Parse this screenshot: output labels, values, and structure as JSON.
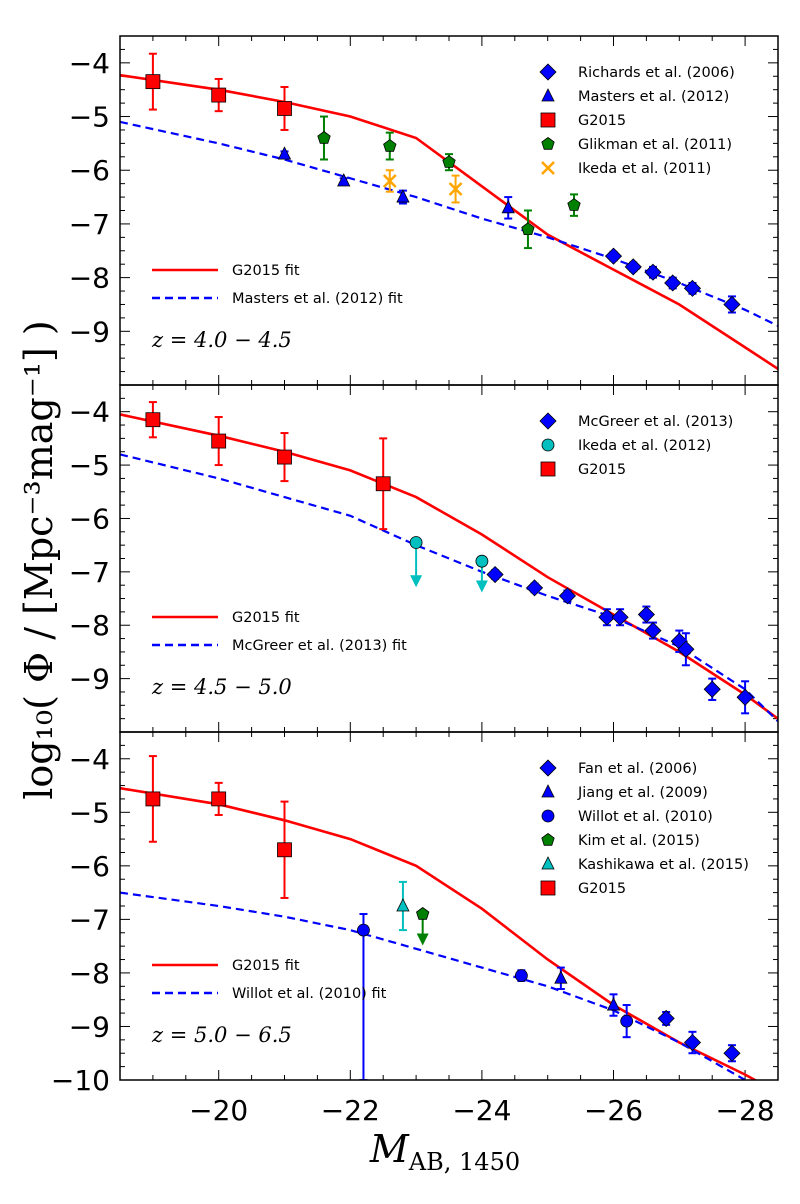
{
  "figure": {
    "ylabel": "log₁₀( Φ / [Mpc⁻³mag⁻¹] )",
    "xlabel_main": "M",
    "xlabel_sub": "AB, 1450"
  },
  "chart_data": [
    {
      "type": "scatter",
      "panel": "top",
      "redshift_label": "z = 4.0 − 4.5",
      "xlim": [
        -18.5,
        -28.5
      ],
      "ylim": [
        -10,
        -3.5
      ],
      "xticks": [
        "-20",
        "-22",
        "-24",
        "-26",
        "-28"
      ],
      "yticks": [
        "-4",
        "-5",
        "-6",
        "-7",
        "-8",
        "-9"
      ],
      "series": [
        {
          "name": "Richards et al. (2006)",
          "marker": "diamond",
          "color": "#0000ff",
          "points": [
            {
              "x": -26.0,
              "y": -7.6,
              "err": 0.08
            },
            {
              "x": -26.3,
              "y": -7.8,
              "err": 0.08
            },
            {
              "x": -26.6,
              "y": -7.9,
              "err": 0.1
            },
            {
              "x": -26.9,
              "y": -8.1,
              "err": 0.1
            },
            {
              "x": -27.2,
              "y": -8.2,
              "err": 0.1
            },
            {
              "x": -27.8,
              "y": -8.5,
              "err": 0.15
            }
          ]
        },
        {
          "name": "Masters et al. (2012)",
          "marker": "triangle",
          "color": "#0000ff",
          "points": [
            {
              "x": -21.0,
              "y": -5.7,
              "err": 0.05
            },
            {
              "x": -21.9,
              "y": -6.2,
              "err": 0.05
            },
            {
              "x": -22.8,
              "y": -6.5,
              "err": 0.12
            },
            {
              "x": -24.4,
              "y": -6.7,
              "err": 0.2
            }
          ]
        },
        {
          "name": "G2015",
          "marker": "square",
          "color": "#ff0000",
          "points": [
            {
              "x": -19.0,
              "y": -4.35,
              "err": 0.52
            },
            {
              "x": -20.0,
              "y": -4.6,
              "err": 0.3
            },
            {
              "x": -21.0,
              "y": -4.85,
              "err": 0.4
            }
          ]
        },
        {
          "name": "Glikman et al. (2011)",
          "marker": "pentagon",
          "color": "#008000",
          "points": [
            {
              "x": -21.6,
              "y": -5.4,
              "err": 0.4
            },
            {
              "x": -22.6,
              "y": -5.55,
              "err": 0.25
            },
            {
              "x": -23.5,
              "y": -5.85,
              "err": 0.15
            },
            {
              "x": -24.7,
              "y": -7.1,
              "err": 0.35
            },
            {
              "x": -25.4,
              "y": -6.65,
              "err": 0.2
            }
          ]
        },
        {
          "name": "Ikeda et al. (2011)",
          "marker": "x",
          "color": "#ffa500",
          "points": [
            {
              "x": -22.6,
              "y": -6.2,
              "err": 0.2
            },
            {
              "x": -23.6,
              "y": -6.35,
              "err": 0.25
            }
          ]
        }
      ],
      "fits": [
        {
          "name": "G2015 fit",
          "style": "solid",
          "color": "#ff0000",
          "x": [
            -18.5,
            -20.0,
            -21.0,
            -22.0,
            -23.0,
            -24.0,
            -25.0,
            -26.0,
            -27.0,
            -28.0,
            -28.5
          ],
          "y": [
            -4.23,
            -4.5,
            -4.73,
            -5.0,
            -5.4,
            -6.3,
            -7.2,
            -7.85,
            -8.5,
            -9.3,
            -9.7
          ]
        },
        {
          "name": "Masters et al. (2012) fit",
          "style": "dashed",
          "color": "#0000ff",
          "x": [
            -18.5,
            -20.0,
            -21.0,
            -22.0,
            -23.0,
            -24.0,
            -25.0,
            -26.0,
            -27.0,
            -28.0,
            -28.5
          ],
          "y": [
            -5.1,
            -5.5,
            -5.8,
            -6.15,
            -6.5,
            -6.9,
            -7.25,
            -7.65,
            -8.1,
            -8.6,
            -8.9
          ]
        }
      ],
      "legend_points": [
        "Richards et al. (2006)",
        "Masters et al. (2012)",
        "G2015",
        "Glikman et al. (2011)",
        "Ikeda et al. (2011)"
      ],
      "legend_fits": [
        "G2015 fit",
        "Masters et al. (2012) fit"
      ]
    },
    {
      "type": "scatter",
      "panel": "middle",
      "redshift_label": "z = 4.5 − 5.0",
      "xlim": [
        -18.5,
        -28.5
      ],
      "ylim": [
        -10,
        -3.5
      ],
      "xticks": [
        "-20",
        "-22",
        "-24",
        "-26",
        "-28"
      ],
      "yticks": [
        "-4",
        "-5",
        "-6",
        "-7",
        "-8",
        "-9"
      ],
      "series": [
        {
          "name": "McGreer et al. (2013)",
          "marker": "diamond",
          "color": "#0000ff",
          "points": [
            {
              "x": -24.2,
              "y": -7.05,
              "err": 0.08
            },
            {
              "x": -24.8,
              "y": -7.3,
              "err": 0.08
            },
            {
              "x": -25.3,
              "y": -7.45,
              "err": 0.1
            },
            {
              "x": -25.9,
              "y": -7.85,
              "err": 0.15
            },
            {
              "x": -26.1,
              "y": -7.85,
              "err": 0.15
            },
            {
              "x": -26.5,
              "y": -7.8,
              "err": 0.15
            },
            {
              "x": -26.6,
              "y": -8.1,
              "err": 0.15
            },
            {
              "x": -27.0,
              "y": -8.3,
              "err": 0.2
            },
            {
              "x": -27.1,
              "y": -8.45,
              "err": 0.3
            },
            {
              "x": -27.5,
              "y": -9.2,
              "err": 0.2
            },
            {
              "x": -28.0,
              "y": -9.35,
              "err": 0.3
            }
          ]
        },
        {
          "name": "Ikeda et al. (2012)",
          "marker": "circle",
          "color": "#00bfbf",
          "upper_limit": true,
          "points": [
            {
              "x": -23.0,
              "y": -6.45,
              "err": 0.8
            },
            {
              "x": -24.0,
              "y": -6.8,
              "err": 0.55
            }
          ]
        },
        {
          "name": "G2015",
          "marker": "square",
          "color": "#ff0000",
          "points": [
            {
              "x": -19.0,
              "y": -4.15,
              "err": 0.33
            },
            {
              "x": -20.0,
              "y": -4.55,
              "err": 0.45
            },
            {
              "x": -21.0,
              "y": -4.85,
              "err": 0.45
            },
            {
              "x": -22.5,
              "y": -5.35,
              "err": 0.85
            }
          ]
        }
      ],
      "fits": [
        {
          "name": "G2015 fit",
          "style": "solid",
          "color": "#ff0000",
          "x": [
            -18.5,
            -20.0,
            -21.0,
            -22.0,
            -23.0,
            -24.0,
            -25.0,
            -26.0,
            -27.0,
            -28.0,
            -28.5
          ],
          "y": [
            -4.05,
            -4.45,
            -4.75,
            -5.1,
            -5.6,
            -6.3,
            -7.1,
            -7.8,
            -8.5,
            -9.3,
            -9.75
          ]
        },
        {
          "name": "McGreer et al. (2013) fit",
          "style": "dashed",
          "color": "#0000ff",
          "x": [
            -18.5,
            -20.0,
            -21.0,
            -22.0,
            -23.0,
            -24.0,
            -25.0,
            -26.0,
            -27.0,
            -28.0,
            -28.5
          ],
          "y": [
            -4.8,
            -5.25,
            -5.6,
            -5.95,
            -6.5,
            -7.0,
            -7.45,
            -7.85,
            -8.4,
            -9.2,
            -9.8
          ]
        }
      ],
      "legend_points": [
        "McGreer et al. (2013)",
        "Ikeda et al. (2012)",
        "G2015"
      ],
      "legend_fits": [
        "G2015 fit",
        "McGreer et al. (2013) fit"
      ]
    },
    {
      "type": "scatter",
      "panel": "bottom",
      "redshift_label": "z = 5.0 − 6.5",
      "xlim": [
        -18.5,
        -28.5
      ],
      "ylim": [
        -10,
        -3.5
      ],
      "xticks": [
        "-20",
        "-22",
        "-24",
        "-26",
        "-28"
      ],
      "yticks": [
        "-4",
        "-5",
        "-6",
        "-7",
        "-8",
        "-9",
        "-10"
      ],
      "series": [
        {
          "name": "Fan et al. (2006)",
          "marker": "diamond",
          "color": "#0000ff",
          "points": [
            {
              "x": -26.8,
              "y": -8.85,
              "err": 0.12
            },
            {
              "x": -27.2,
              "y": -9.3,
              "err": 0.2
            },
            {
              "x": -27.8,
              "y": -9.5,
              "err": 0.15
            }
          ]
        },
        {
          "name": "Jiang et al. (2009)",
          "marker": "triangle",
          "color": "#0000ff",
          "points": [
            {
              "x": -25.2,
              "y": -8.1,
              "err": 0.2
            },
            {
              "x": -26.0,
              "y": -8.6,
              "err": 0.2
            }
          ]
        },
        {
          "name": "Willot et al. (2010)",
          "marker": "circle",
          "color": "#0000ff",
          "points": [
            {
              "x": -22.2,
              "y": -7.2,
              "err": 0.3,
              "err_low_to": -10.0
            },
            {
              "x": -24.6,
              "y": -8.05,
              "err": 0.1
            },
            {
              "x": -26.2,
              "y": -8.9,
              "err": 0.3
            }
          ]
        },
        {
          "name": "Kim et al. (2015)",
          "marker": "pentagon",
          "color": "#008000",
          "upper_limit": true,
          "points": [
            {
              "x": -23.1,
              "y": -6.9,
              "err": 0.55
            }
          ]
        },
        {
          "name": "Kashikawa et al. (2015)",
          "marker": "triangle",
          "color": "#00bfbf",
          "points": [
            {
              "x": -22.8,
              "y": -6.75,
              "err": 0.45
            }
          ]
        },
        {
          "name": "G2015",
          "marker": "square",
          "color": "#ff0000",
          "points": [
            {
              "x": -19.0,
              "y": -4.75,
              "err": 0.8
            },
            {
              "x": -20.0,
              "y": -4.75,
              "err": 0.3
            },
            {
              "x": -21.0,
              "y": -5.7,
              "err": 0.9
            }
          ]
        }
      ],
      "fits": [
        {
          "name": "G2015 fit",
          "style": "solid",
          "color": "#ff0000",
          "x": [
            -18.5,
            -20.0,
            -21.0,
            -22.0,
            -23.0,
            -24.0,
            -25.0,
            -26.0,
            -27.0,
            -28.0,
            -28.3
          ],
          "y": [
            -4.55,
            -4.85,
            -5.15,
            -5.5,
            -6.0,
            -6.8,
            -7.75,
            -8.6,
            -9.3,
            -9.9,
            -10.1
          ]
        },
        {
          "name": "Willot et al. (2010) fit",
          "style": "dashed",
          "color": "#0000ff",
          "x": [
            -18.5,
            -20.0,
            -21.0,
            -22.0,
            -23.0,
            -24.0,
            -25.0,
            -26.0,
            -27.0,
            -28.0
          ],
          "y": [
            -6.5,
            -6.75,
            -6.95,
            -7.2,
            -7.55,
            -7.9,
            -8.25,
            -8.7,
            -9.3,
            -10.0
          ]
        }
      ],
      "legend_points": [
        "Fan et al. (2006)",
        "Jiang et al. (2009)",
        "Willot et al. (2010)",
        "Kim et al. (2015)",
        "Kashikawa et al. (2015)",
        "G2015"
      ],
      "legend_fits": [
        "G2015 fit",
        "Willot et al. (2010) fit"
      ]
    }
  ]
}
